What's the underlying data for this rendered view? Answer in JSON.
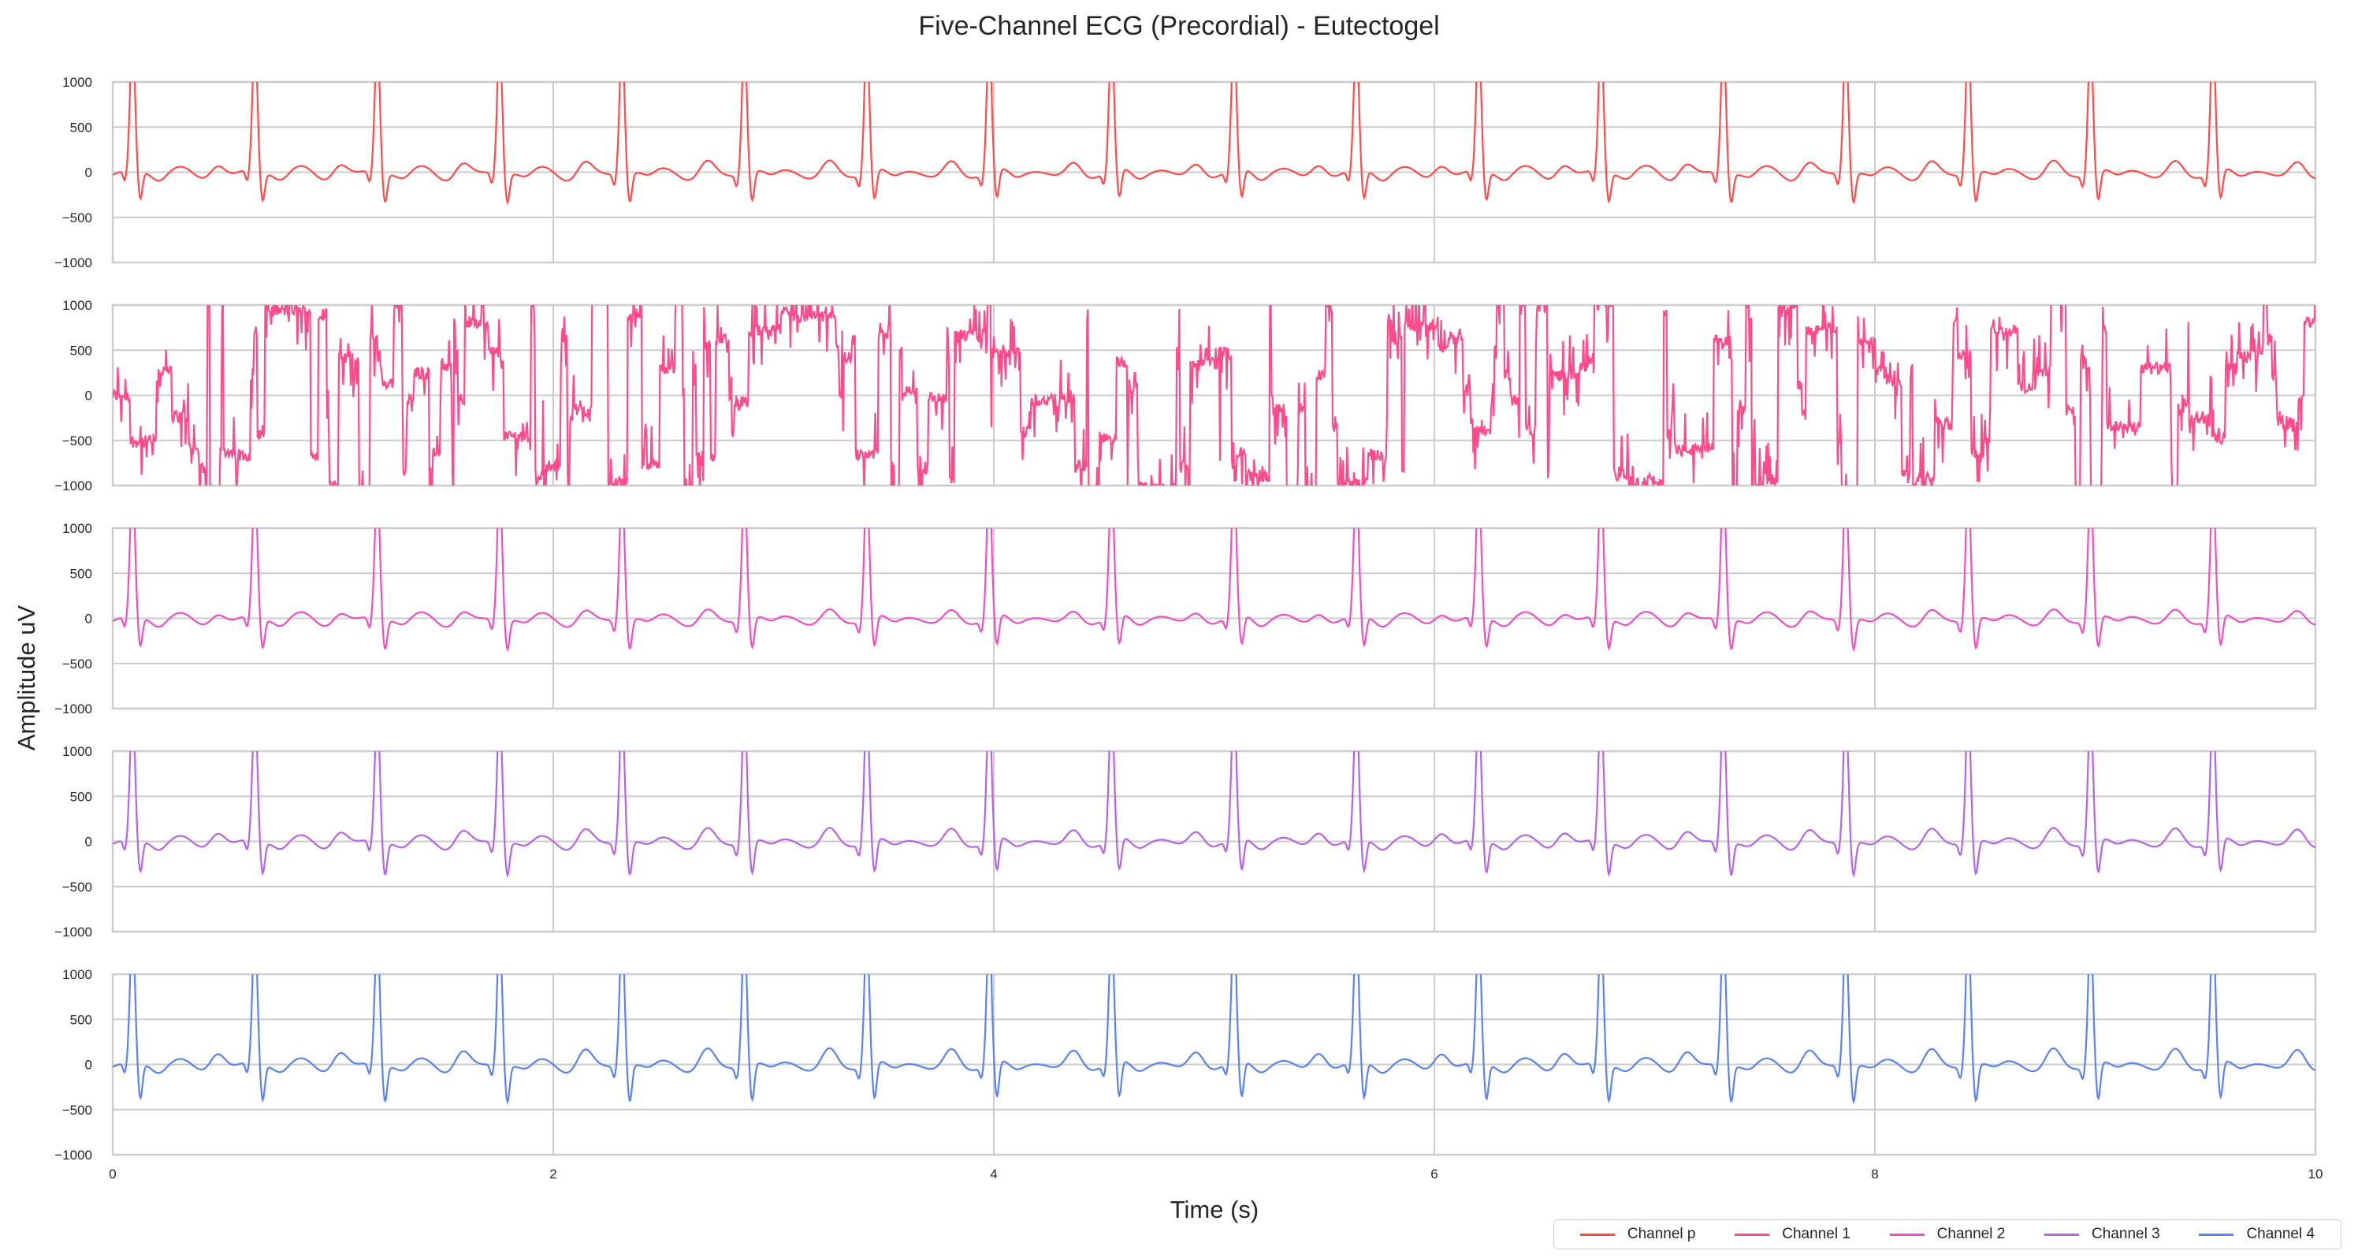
{
  "chart_data": {
    "type": "line",
    "title": "Five-Channel ECG (Precordial) - Eutectogel",
    "xlabel": "Time (s)",
    "ylabel": "Amplitude uV",
    "xlim": [
      0,
      10
    ],
    "ylim": [
      -1000,
      1000
    ],
    "x_ticks": [
      "0",
      "2",
      "4",
      "6",
      "8",
      "10"
    ],
    "y_ticks": [
      "1000",
      "500",
      "0",
      "−500",
      "−1000"
    ],
    "grid": true,
    "legend_position": "bottom-right",
    "shared_x": true,
    "heart_rate_bpm": 108,
    "series": [
      {
        "name": "Channel p",
        "color": "#ff4b4b",
        "signal": "ecg",
        "r_peak_uV": 1000,
        "p_wave_uV": 180,
        "s_wave_uV": -320
      },
      {
        "name": "Channel 1",
        "color": "#ff4b8b",
        "signal": "noisy",
        "r_peak_uV": 1000,
        "p_wave_uV": 0,
        "s_wave_uV": -1000
      },
      {
        "name": "Channel 2",
        "color": "#ee4fc4",
        "signal": "ecg",
        "r_peak_uV": 1000,
        "p_wave_uV": 150,
        "s_wave_uV": -330
      },
      {
        "name": "Channel 3",
        "color": "#b664e6",
        "signal": "ecg",
        "r_peak_uV": 1000,
        "p_wave_uV": 200,
        "s_wave_uV": -360
      },
      {
        "name": "Channel 4",
        "color": "#5b82ef",
        "signal": "ecg",
        "r_peak_uV": 1000,
        "p_wave_uV": 230,
        "s_wave_uV": -400
      }
    ]
  }
}
